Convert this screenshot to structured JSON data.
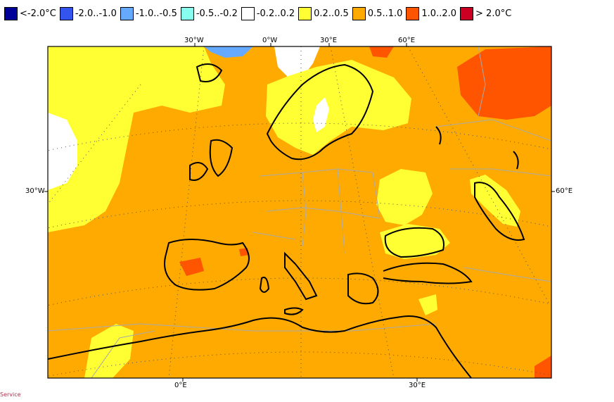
{
  "legend": [
    {
      "label": "<-2.0°C",
      "color": "#000099"
    },
    {
      "label": "-2.0..-1.0",
      "color": "#3355ee"
    },
    {
      "label": "-1.0..-0.5",
      "color": "#66aaff"
    },
    {
      "label": "-0.5..-0.2",
      "color": "#88ffee"
    },
    {
      "label": "-0.2..0.2",
      "color": "#ffffff"
    },
    {
      "label": "0.2..0.5",
      "color": "#ffff33"
    },
    {
      "label": "0.5..1.0",
      "color": "#ffaa00"
    },
    {
      "label": "1.0..2.0",
      "color": "#ff5500"
    },
    {
      "label": "> 2.0°C",
      "color": "#cc0022"
    }
  ],
  "map": {
    "top_ticks": [
      "30°W",
      "0°W",
      "30°E",
      "60°E"
    ],
    "left_ticks": [
      "30°W"
    ],
    "right_ticks": [
      "60°E"
    ],
    "bottom_ticks": [
      "0°E",
      "30°E"
    ],
    "footer": "Service"
  },
  "colors": {
    "base": "#ffaa00",
    "warm": "#ff5500",
    "mild": "#ffff33",
    "neutral": "#ffffff",
    "cool": "#66aaff",
    "coast": "#000000",
    "border": "#aaaaaa"
  }
}
